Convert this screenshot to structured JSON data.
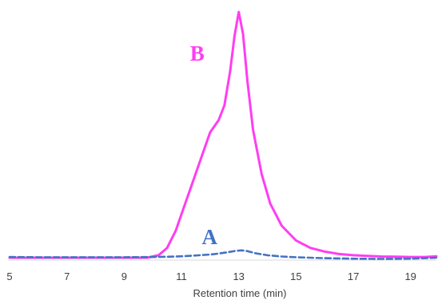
{
  "chart_data": {
    "type": "line",
    "title": "",
    "xlabel": "Retention time (min)",
    "ylabel": "",
    "xlim": [
      5,
      19.9
    ],
    "ylim": [
      0,
      1
    ],
    "xticks": [
      5,
      7,
      9,
      11,
      13,
      15,
      17,
      19
    ],
    "grid": false,
    "legend": "none",
    "series": [
      {
        "name": "B",
        "color": "#ff3df2",
        "style": "solid",
        "x": [
          5.0,
          6.0,
          7.0,
          8.0,
          9.0,
          9.8,
          10.2,
          10.5,
          10.8,
          11.1,
          11.4,
          11.7,
          12.0,
          12.3,
          12.5,
          12.7,
          12.85,
          13.0,
          13.15,
          13.3,
          13.5,
          13.8,
          14.1,
          14.5,
          15.0,
          15.5,
          16.0,
          16.5,
          17.0,
          17.5,
          18.0,
          18.5,
          19.0,
          19.5,
          19.9
        ],
        "y": [
          0.0,
          0.0,
          0.0,
          0.0,
          0.0,
          0.0,
          0.01,
          0.04,
          0.11,
          0.21,
          0.31,
          0.41,
          0.51,
          0.56,
          0.62,
          0.76,
          0.9,
          1.0,
          0.91,
          0.72,
          0.52,
          0.34,
          0.22,
          0.13,
          0.07,
          0.04,
          0.025,
          0.015,
          0.01,
          0.007,
          0.005,
          0.004,
          0.003,
          0.003,
          0.006
        ]
      },
      {
        "name": "A",
        "color": "#4472c4",
        "style": "dashed",
        "x": [
          5.0,
          6.0,
          7.0,
          8.0,
          9.0,
          10.0,
          10.5,
          11.0,
          11.5,
          12.0,
          12.3,
          12.6,
          12.9,
          13.1,
          13.3,
          13.6,
          14.0,
          14.5,
          15.0,
          15.5,
          16.0,
          17.0,
          18.0,
          19.0,
          19.9
        ],
        "y": [
          0.003,
          0.002,
          0.002,
          0.002,
          0.002,
          0.003,
          0.004,
          0.006,
          0.009,
          0.013,
          0.017,
          0.022,
          0.028,
          0.03,
          0.027,
          0.018,
          0.01,
          0.005,
          0.002,
          0.0,
          -0.002,
          -0.004,
          -0.005,
          -0.004,
          0.0
        ]
      }
    ]
  }
}
